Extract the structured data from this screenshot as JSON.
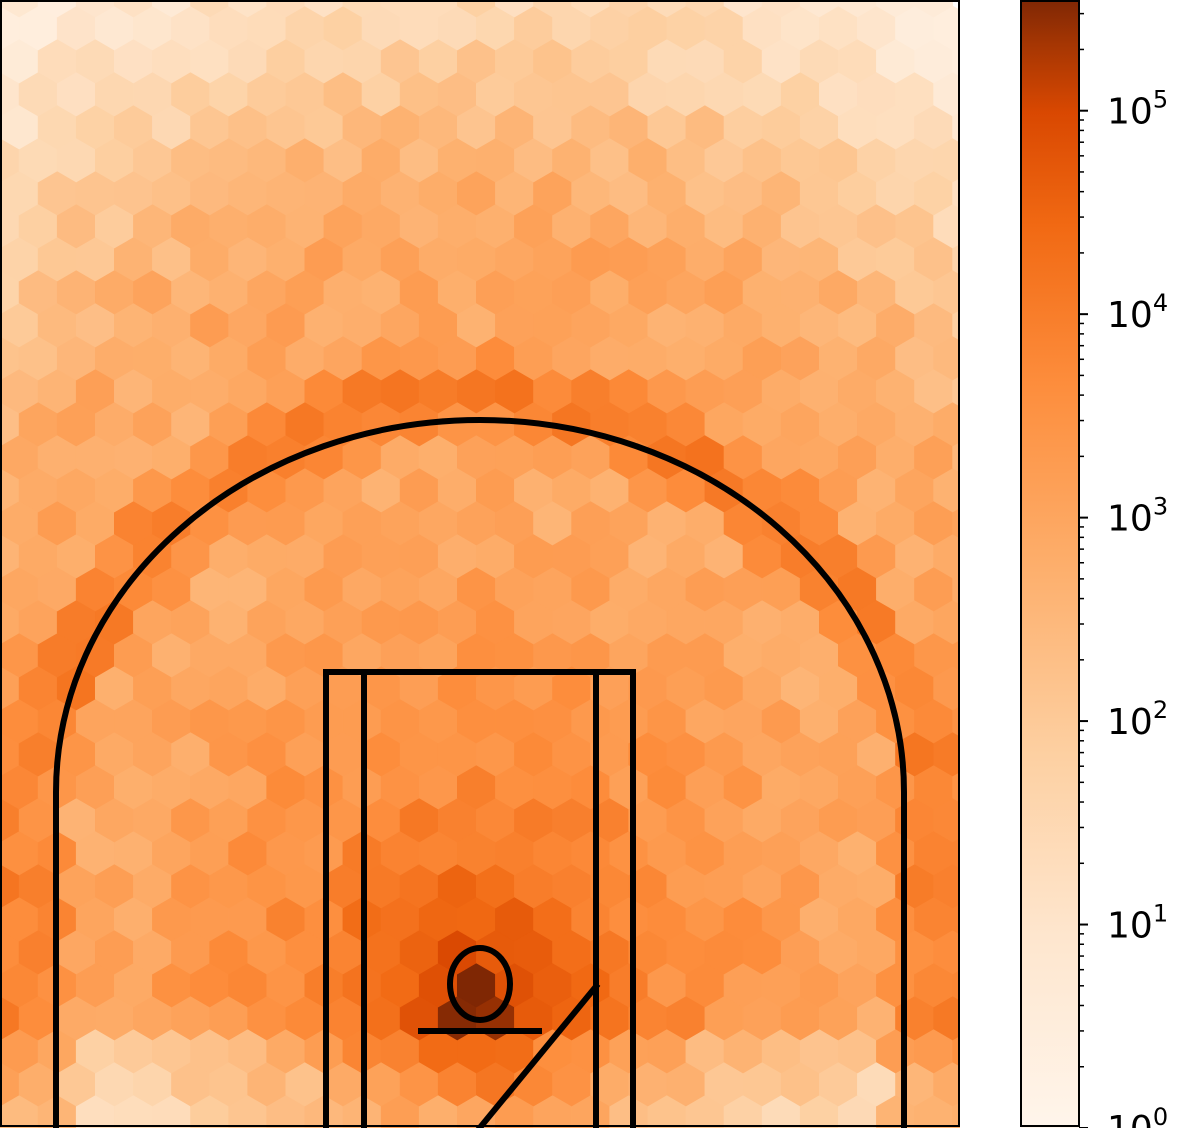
{
  "chart_data": {
    "type": "heatmap",
    "subtype": "hexbin",
    "title": "",
    "xlabel": "",
    "ylabel": "",
    "description_kind": "basketball half-court shot density (court lines overlaid)",
    "colormap": "Oranges",
    "color_scale": "log",
    "colors": {
      "low": "#fff5eb",
      "mid_low": "#fdd0a2",
      "mid": "#fd8d3c",
      "mid_high": "#d94801",
      "high": "#7f2704",
      "court_lines": "#000000"
    },
    "x_range": [
      -250,
      250
    ],
    "y_range": [
      -47.5,
      422.5
    ],
    "density_model": {
      "rim": {
        "x": 0,
        "y": 0,
        "peak": 300000
      },
      "three_point_arc_radius": 237.5,
      "corner_three_x": 220
    },
    "colorbar": {
      "scale": "log",
      "range": [
        1,
        350000
      ],
      "ticks": [
        {
          "base": "10",
          "exp": "0"
        },
        {
          "base": "10",
          "exp": "1"
        },
        {
          "base": "10",
          "exp": "2"
        },
        {
          "base": "10",
          "exp": "3"
        },
        {
          "base": "10",
          "exp": "4"
        },
        {
          "base": "10",
          "exp": "5"
        }
      ],
      "label": ""
    },
    "grid": false,
    "legend": "none"
  }
}
